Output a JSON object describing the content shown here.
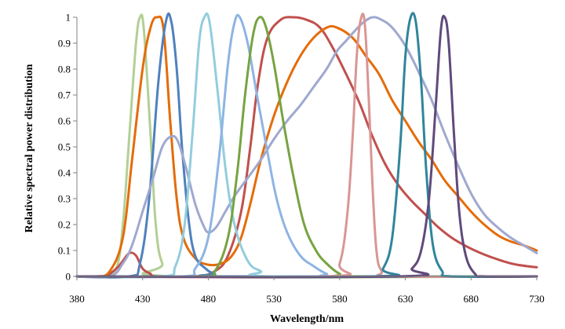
{
  "chart_data": {
    "type": "line",
    "title": "",
    "xlabel": "Wavelength/nm",
    "ylabel": "Relative spectral power distribution",
    "xlim": [
      380,
      730
    ],
    "ylim": [
      0,
      1
    ],
    "x_ticks": [
      "380",
      "430",
      "480",
      "530",
      "580",
      "630",
      "680",
      "730"
    ],
    "y_ticks": [
      "0",
      "0.1",
      "0.2",
      "0.3",
      "0.4",
      "0.5",
      "0.6",
      "0.7",
      "0.8",
      "0.9",
      "1"
    ],
    "grid": false,
    "legend": "none",
    "series": [
      {
        "color": "#b3cf95",
        "points": [
          [
            380,
            0
          ],
          [
            400,
            0
          ],
          [
            410,
            0.03
          ],
          [
            415,
            0.2
          ],
          [
            420,
            0.55
          ],
          [
            425,
            0.9
          ],
          [
            428,
            1.0
          ],
          [
            431,
            0.95
          ],
          [
            436,
            0.55
          ],
          [
            440,
            0.2
          ],
          [
            445,
            0.05
          ],
          [
            455,
            0
          ],
          [
            730,
            0
          ]
        ]
      },
      {
        "color": "#c0504d",
        "points": [
          [
            380,
            0
          ],
          [
            400,
            0
          ],
          [
            410,
            0.03
          ],
          [
            415,
            0.06
          ],
          [
            420,
            0.09
          ],
          [
            425,
            0.08
          ],
          [
            430,
            0.03
          ],
          [
            436,
            0.01
          ],
          [
            440,
            0
          ],
          [
            470,
            0
          ],
          [
            485,
            0.02
          ],
          [
            495,
            0.08
          ],
          [
            505,
            0.25
          ],
          [
            512,
            0.5
          ],
          [
            518,
            0.75
          ],
          [
            525,
            0.92
          ],
          [
            535,
            0.99
          ],
          [
            545,
            1.0
          ],
          [
            555,
            0.99
          ],
          [
            565,
            0.96
          ],
          [
            575,
            0.88
          ],
          [
            585,
            0.78
          ],
          [
            595,
            0.67
          ],
          [
            605,
            0.54
          ],
          [
            615,
            0.43
          ],
          [
            625,
            0.35
          ],
          [
            635,
            0.29
          ],
          [
            645,
            0.24
          ],
          [
            655,
            0.19
          ],
          [
            665,
            0.15
          ],
          [
            675,
            0.12
          ],
          [
            685,
            0.095
          ],
          [
            695,
            0.075
          ],
          [
            705,
            0.058
          ],
          [
            715,
            0.045
          ],
          [
            730,
            0.035
          ]
        ]
      },
      {
        "color": "#e46c0a",
        "points": [
          [
            380,
            0
          ],
          [
            395,
            0
          ],
          [
            405,
            0.02
          ],
          [
            415,
            0.15
          ],
          [
            422,
            0.45
          ],
          [
            430,
            0.8
          ],
          [
            436,
            0.96
          ],
          [
            441,
            1.0
          ],
          [
            446,
            0.95
          ],
          [
            451,
            0.6
          ],
          [
            456,
            0.3
          ],
          [
            461,
            0.15
          ],
          [
            470,
            0.07
          ],
          [
            480,
            0.045
          ],
          [
            490,
            0.05
          ],
          [
            498,
            0.08
          ],
          [
            505,
            0.15
          ],
          [
            512,
            0.28
          ],
          [
            520,
            0.45
          ],
          [
            530,
            0.62
          ],
          [
            540,
            0.75
          ],
          [
            550,
            0.85
          ],
          [
            560,
            0.92
          ],
          [
            570,
            0.96
          ],
          [
            578,
            0.96
          ],
          [
            590,
            0.92
          ],
          [
            600,
            0.85
          ],
          [
            610,
            0.78
          ],
          [
            620,
            0.68
          ],
          [
            630,
            0.6
          ],
          [
            640,
            0.52
          ],
          [
            650,
            0.45
          ],
          [
            660,
            0.37
          ],
          [
            670,
            0.31
          ],
          [
            680,
            0.25
          ],
          [
            690,
            0.2
          ],
          [
            700,
            0.16
          ],
          [
            710,
            0.135
          ],
          [
            720,
            0.12
          ],
          [
            730,
            0.1
          ]
        ]
      },
      {
        "color": "#4f81bd",
        "points": [
          [
            380,
            0
          ],
          [
            420,
            0
          ],
          [
            428,
            0.05
          ],
          [
            435,
            0.3
          ],
          [
            442,
            0.75
          ],
          [
            448,
            0.99
          ],
          [
            452,
            0.98
          ],
          [
            456,
            0.8
          ],
          [
            460,
            0.5
          ],
          [
            465,
            0.22
          ],
          [
            470,
            0.08
          ],
          [
            478,
            0.03
          ],
          [
            485,
            0.01
          ],
          [
            495,
            0
          ],
          [
            730,
            0
          ]
        ]
      },
      {
        "color": "#9fa8cf",
        "points": [
          [
            380,
            0
          ],
          [
            405,
            0
          ],
          [
            415,
            0.05
          ],
          [
            422,
            0.12
          ],
          [
            430,
            0.25
          ],
          [
            438,
            0.38
          ],
          [
            445,
            0.5
          ],
          [
            452,
            0.54
          ],
          [
            457,
            0.52
          ],
          [
            463,
            0.42
          ],
          [
            470,
            0.28
          ],
          [
            476,
            0.2
          ],
          [
            480,
            0.17
          ],
          [
            486,
            0.19
          ],
          [
            493,
            0.25
          ],
          [
            500,
            0.31
          ],
          [
            510,
            0.38
          ],
          [
            520,
            0.45
          ],
          [
            530,
            0.53
          ],
          [
            540,
            0.6
          ],
          [
            550,
            0.66
          ],
          [
            560,
            0.73
          ],
          [
            570,
            0.8
          ],
          [
            578,
            0.87
          ],
          [
            585,
            0.91
          ],
          [
            592,
            0.95
          ],
          [
            598,
            0.98
          ],
          [
            605,
            1.0
          ],
          [
            612,
            0.99
          ],
          [
            620,
            0.96
          ],
          [
            630,
            0.89
          ],
          [
            640,
            0.79
          ],
          [
            650,
            0.68
          ],
          [
            660,
            0.55
          ],
          [
            670,
            0.43
          ],
          [
            680,
            0.32
          ],
          [
            690,
            0.24
          ],
          [
            700,
            0.19
          ],
          [
            710,
            0.15
          ],
          [
            720,
            0.12
          ],
          [
            730,
            0.09
          ]
        ]
      },
      {
        "color": "#93cddd",
        "points": [
          [
            380,
            0
          ],
          [
            445,
            0
          ],
          [
            455,
            0.04
          ],
          [
            462,
            0.2
          ],
          [
            468,
            0.55
          ],
          [
            473,
            0.9
          ],
          [
            477,
            1.0
          ],
          [
            481,
            0.98
          ],
          [
            487,
            0.72
          ],
          [
            493,
            0.42
          ],
          [
            500,
            0.2
          ],
          [
            510,
            0.06
          ],
          [
            520,
            0.02
          ],
          [
            530,
            0
          ],
          [
            730,
            0
          ]
        ]
      },
      {
        "color": "#8eb4e3",
        "points": [
          [
            380,
            0
          ],
          [
            460,
            0
          ],
          [
            470,
            0.03
          ],
          [
            480,
            0.15
          ],
          [
            488,
            0.45
          ],
          [
            495,
            0.82
          ],
          [
            500,
            0.98
          ],
          [
            504,
            1.0
          ],
          [
            510,
            0.9
          ],
          [
            517,
            0.7
          ],
          [
            525,
            0.48
          ],
          [
            532,
            0.3
          ],
          [
            540,
            0.17
          ],
          [
            550,
            0.08
          ],
          [
            560,
            0.04
          ],
          [
            570,
            0.01
          ],
          [
            580,
            0
          ],
          [
            730,
            0
          ]
        ]
      },
      {
        "color": "#77a341",
        "points": [
          [
            380,
            0
          ],
          [
            475,
            0
          ],
          [
            485,
            0.02
          ],
          [
            495,
            0.15
          ],
          [
            502,
            0.4
          ],
          [
            508,
            0.7
          ],
          [
            514,
            0.93
          ],
          [
            519,
            1.0
          ],
          [
            524,
            0.96
          ],
          [
            530,
            0.82
          ],
          [
            537,
            0.6
          ],
          [
            545,
            0.38
          ],
          [
            553,
            0.2
          ],
          [
            562,
            0.1
          ],
          [
            570,
            0.05
          ],
          [
            580,
            0.01
          ],
          [
            590,
            0
          ],
          [
            730,
            0
          ]
        ]
      },
      {
        "color": "#d99694",
        "points": [
          [
            380,
            0
          ],
          [
            570,
            0
          ],
          [
            580,
            0.05
          ],
          [
            586,
            0.25
          ],
          [
            590,
            0.55
          ],
          [
            593,
            0.85
          ],
          [
            596,
            0.99
          ],
          [
            599,
            0.98
          ],
          [
            602,
            0.7
          ],
          [
            605,
            0.35
          ],
          [
            608,
            0.1
          ],
          [
            612,
            0.02
          ],
          [
            620,
            0
          ],
          [
            730,
            0
          ]
        ]
      },
      {
        "color": "#31859c",
        "points": [
          [
            380,
            0
          ],
          [
            605,
            0
          ],
          [
            613,
            0.03
          ],
          [
            620,
            0.15
          ],
          [
            626,
            0.5
          ],
          [
            630,
            0.85
          ],
          [
            634,
            1.0
          ],
          [
            638,
            0.98
          ],
          [
            642,
            0.75
          ],
          [
            646,
            0.4
          ],
          [
            651,
            0.12
          ],
          [
            658,
            0.02
          ],
          [
            665,
            0
          ],
          [
            730,
            0
          ]
        ]
      },
      {
        "color": "#604a7b",
        "points": [
          [
            380,
            0
          ],
          [
            625,
            0
          ],
          [
            635,
            0.03
          ],
          [
            642,
            0.1
          ],
          [
            648,
            0.3
          ],
          [
            653,
            0.65
          ],
          [
            657,
            0.95
          ],
          [
            660,
            1.0
          ],
          [
            663,
            0.9
          ],
          [
            667,
            0.55
          ],
          [
            671,
            0.25
          ],
          [
            676,
            0.08
          ],
          [
            683,
            0.01
          ],
          [
            690,
            0
          ],
          [
            730,
            0
          ]
        ]
      }
    ]
  }
}
